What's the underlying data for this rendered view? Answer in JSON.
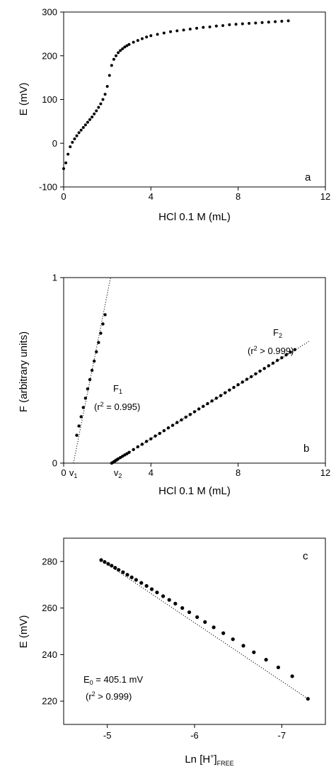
{
  "chart_data": [
    {
      "type": "scatter",
      "panel_label": "a",
      "xlabel": "HCl 0.1 M (mL)",
      "ylabel": "E (mV)",
      "xlim": [
        0,
        12
      ],
      "ylim": [
        -100,
        300
      ],
      "xticks": [
        "0",
        "4",
        "8",
        "12"
      ],
      "yticks": [
        "-100",
        "0",
        "100",
        "200",
        "300"
      ],
      "series": [
        {
          "x": [
            0.0,
            0.1,
            0.2,
            0.3,
            0.4,
            0.5,
            0.6,
            0.7,
            0.8,
            0.9,
            1.0,
            1.1,
            1.2,
            1.3,
            1.4,
            1.5,
            1.6,
            1.7,
            1.8,
            1.9,
            2.0,
            2.1,
            2.2,
            2.3,
            2.4,
            2.5,
            2.6,
            2.7,
            2.8,
            2.9,
            3.0,
            3.2,
            3.4,
            3.6,
            3.8,
            4.0,
            4.3,
            4.6,
            4.9,
            5.2,
            5.5,
            5.8,
            6.1,
            6.4,
            6.7,
            7.0,
            7.3,
            7.6,
            7.9,
            8.2,
            8.5,
            8.8,
            9.1,
            9.4,
            9.7,
            10.0,
            10.3
          ],
          "values": [
            -58,
            -45,
            -25,
            -8,
            2,
            10,
            17,
            24,
            30,
            36,
            42,
            48,
            54,
            60,
            67,
            74,
            82,
            90,
            100,
            112,
            130,
            155,
            178,
            192,
            200,
            207,
            212,
            216,
            220,
            223,
            226,
            231,
            235,
            239,
            243,
            246,
            249,
            252,
            255,
            257,
            259,
            261,
            263,
            265,
            266,
            268,
            269,
            271,
            272,
            273,
            274,
            275,
            276,
            277,
            278,
            279,
            280
          ]
        }
      ]
    },
    {
      "type": "scatter",
      "panel_label": "b",
      "xlabel": "HCl 0.1 M (mL)",
      "ylabel": "F (arbitrary units)",
      "xlim": [
        0,
        12
      ],
      "ylim": [
        0,
        1
      ],
      "xticks": [
        "0",
        "4",
        "8",
        "12"
      ],
      "yticks": [
        "0",
        "1"
      ],
      "x_markers": [
        {
          "text": "v",
          "sub": "1",
          "x": 0.45
        },
        {
          "text": "v",
          "sub": "2",
          "x": 2.2
        }
      ],
      "annotations": [
        {
          "name": "F1",
          "line1_main": "F",
          "line1_sub": "1",
          "line2_pre": "(r",
          "line2_sup": "2",
          "line2_post": " =  0.995)"
        },
        {
          "name": "F2",
          "line1_main": "F",
          "line1_sub": "2",
          "line2_pre": "(r",
          "line2_sup": "2",
          "line2_post": " > 0.999)"
        }
      ],
      "series": [
        {
          "name": "F1",
          "x": [
            0.6,
            0.7,
            0.8,
            0.9,
            1.0,
            1.1,
            1.2,
            1.3,
            1.4,
            1.5,
            1.6,
            1.7,
            1.8,
            1.9
          ],
          "values": [
            0.15,
            0.2,
            0.25,
            0.3,
            0.35,
            0.4,
            0.45,
            0.5,
            0.55,
            0.6,
            0.65,
            0.7,
            0.75,
            0.8
          ],
          "fit_line": {
            "x": [
              0.45,
              2.15
            ],
            "y": [
              0.0,
              1.0
            ]
          }
        },
        {
          "name": "F2",
          "x": [
            2.2,
            2.25,
            2.3,
            2.35,
            2.4,
            2.45,
            2.5,
            2.6,
            2.7,
            2.8,
            2.9,
            3.0,
            3.2,
            3.4,
            3.6,
            3.8,
            4.0,
            4.2,
            4.4,
            4.6,
            4.8,
            5.0,
            5.2,
            5.4,
            5.6,
            5.8,
            6.0,
            6.2,
            6.4,
            6.6,
            6.8,
            7.0,
            7.2,
            7.4,
            7.6,
            7.8,
            8.0,
            8.2,
            8.4,
            8.6,
            8.8,
            9.0,
            9.2,
            9.4,
            9.6,
            9.8,
            10.0,
            10.2,
            10.4,
            10.6
          ],
          "values": [
            0.0,
            0.003,
            0.007,
            0.011,
            0.015,
            0.019,
            0.023,
            0.03,
            0.037,
            0.044,
            0.051,
            0.058,
            0.073,
            0.088,
            0.102,
            0.117,
            0.131,
            0.146,
            0.16,
            0.175,
            0.19,
            0.204,
            0.219,
            0.233,
            0.248,
            0.262,
            0.277,
            0.292,
            0.306,
            0.321,
            0.335,
            0.35,
            0.364,
            0.379,
            0.394,
            0.408,
            0.423,
            0.437,
            0.452,
            0.466,
            0.481,
            0.496,
            0.51,
            0.525,
            0.539,
            0.554,
            0.568,
            0.583,
            0.598,
            0.612
          ],
          "fit_line": {
            "x": [
              2.2,
              11.3
            ],
            "y": [
              0.0,
              0.66
            ]
          }
        }
      ]
    },
    {
      "type": "scatter",
      "panel_label": "c",
      "xlabel_parts": {
        "pre": "Ln [H",
        "sup": "+",
        "post": "]",
        "sub": "FREE"
      },
      "ylabel": "E (mV)",
      "xlim": [
        -4.5,
        -7.5
      ],
      "ylim": [
        210,
        290
      ],
      "xticks": [
        "-5",
        "-6",
        "-7"
      ],
      "yticks": [
        "220",
        "240",
        "260",
        "280"
      ],
      "annotation": {
        "line1_main": "E",
        "line1_sub": "0",
        "line1_post": " = 405.1 mV",
        "line2_pre": "(r",
        "line2_sup": "2",
        "line2_post": " > 0.999)"
      },
      "series": [
        {
          "x": [
            -4.93,
            -4.97,
            -5.01,
            -5.05,
            -5.09,
            -5.13,
            -5.18,
            -5.23,
            -5.28,
            -5.33,
            -5.39,
            -5.45,
            -5.51,
            -5.57,
            -5.64,
            -5.71,
            -5.78,
            -5.86,
            -5.94,
            -6.03,
            -6.12,
            -6.22,
            -6.33,
            -6.44,
            -6.56,
            -6.68,
            -6.82,
            -6.96,
            -7.12,
            -7.3
          ],
          "values": [
            280.6,
            279.8,
            279.0,
            278.2,
            277.3,
            276.4,
            275.4,
            274.3,
            273.2,
            272.1,
            270.8,
            269.5,
            268.1,
            266.7,
            265.1,
            263.5,
            261.9,
            260.0,
            258.2,
            256.1,
            254.0,
            251.7,
            249.2,
            246.6,
            243.8,
            241.0,
            237.8,
            234.5,
            230.7,
            221.0
          ],
          "fit_line": {
            "x": [
              -4.93,
              -7.3
            ],
            "y": [
              280.6,
              221.0
            ]
          }
        }
      ]
    }
  ]
}
